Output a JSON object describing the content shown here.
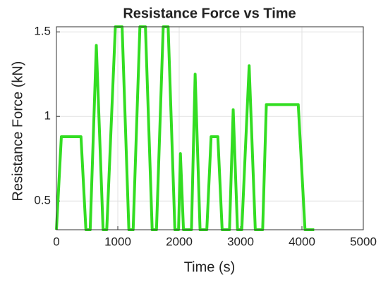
{
  "chart_data": {
    "type": "line",
    "title": "Resistance Force vs Time",
    "xlabel": "Time (s)",
    "ylabel": "Resistance Force (kN)",
    "x": [
      0,
      80,
      400,
      480,
      550,
      650,
      760,
      820,
      960,
      1070,
      1180,
      1250,
      1360,
      1450,
      1560,
      1630,
      1740,
      1820,
      1930,
      1990,
      2020,
      2070,
      2200,
      2260,
      2340,
      2450,
      2520,
      2630,
      2700,
      2820,
      2880,
      2950,
      3020,
      3140,
      3240,
      3360,
      3420,
      3940,
      4050,
      4200
    ],
    "values": [
      0.33,
      0.88,
      0.88,
      0.33,
      0.33,
      1.42,
      0.33,
      0.33,
      1.53,
      1.53,
      0.33,
      0.33,
      1.53,
      1.53,
      0.33,
      0.33,
      1.53,
      1.53,
      0.33,
      0.33,
      0.78,
      0.33,
      0.33,
      1.25,
      0.33,
      0.33,
      0.88,
      0.88,
      0.33,
      0.33,
      1.04,
      0.33,
      0.33,
      1.3,
      0.33,
      0.33,
      1.07,
      1.07,
      0.33,
      0.33
    ],
    "color": "#33dd22",
    "xlim": [
      0,
      5000
    ],
    "xticks": [
      0,
      1000,
      2000,
      3000,
      4000,
      5000
    ],
    "ylim": [
      0.33,
      1.53
    ],
    "yticks": [
      0.5,
      1,
      1.5
    ],
    "grid": true
  }
}
